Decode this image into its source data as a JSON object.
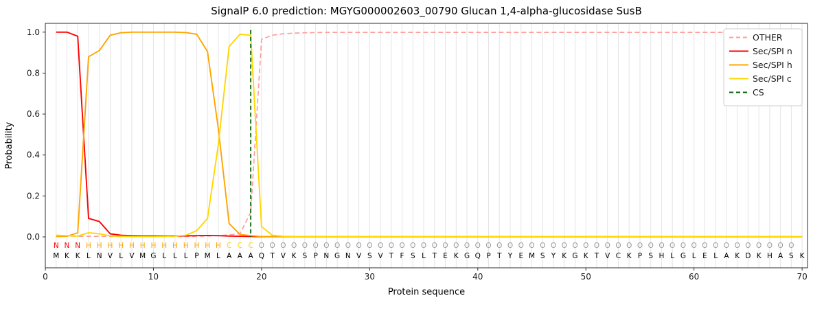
{
  "title": "SignalP 6.0 prediction: MGYG000002603_00790 Glucan 1,4-alpha-glucosidase SusB",
  "axes": {
    "xlabel": "Protein sequence",
    "ylabel": "Probability",
    "xticks": [
      0,
      10,
      20,
      30,
      40,
      50,
      60,
      70
    ],
    "yticks": [
      "0.0",
      "0.2",
      "0.4",
      "0.6",
      "0.8",
      "1.0"
    ]
  },
  "legend": {
    "entries": [
      {
        "label": "OTHER",
        "color": "#ff9e9e",
        "dash": true
      },
      {
        "label": "Sec/SPI n",
        "color": "#ff0000",
        "dash": false
      },
      {
        "label": "Sec/SPI h",
        "color": "#ffa500",
        "dash": false
      },
      {
        "label": "Sec/SPI c",
        "color": "#ffd700",
        "dash": false
      },
      {
        "label": "CS",
        "color": "#006400",
        "dash": true
      }
    ]
  },
  "sequence": "MKKLNVLVMGLLLPMLAAAQTVKSPNGNVSVTFSLTEKGQPTYEMSYKGKTVCKPSHLGLELAKDKHASK",
  "region_labels": "NNNHHHHHHHHHHHHHCCCOOOOOOOOOOOOOOOOOOOOOOOOOOOOOOOOOOOOOOOOOOOOOOOOOO",
  "region_colors": {
    "N": "#ff0000",
    "H": "#ffa500",
    "C": "#ffd700",
    "O": "#999999"
  },
  "grid_color": "#e4e4e4",
  "chart_data": {
    "type": "line",
    "title": "SignalP 6.0 prediction: MGYG000002603_00790 Glucan 1,4-alpha-glucosidase SusB",
    "xlabel": "Protein sequence",
    "ylabel": "Probability",
    "x_start": 1,
    "xlim": [
      0,
      70.5
    ],
    "ylim": [
      -0.151,
      1.043
    ],
    "grid": "vertical-per-residue",
    "legend_position": "upper right",
    "cs_x": 19,
    "series": [
      {
        "name": "OTHER",
        "color": "#ff9e9e",
        "dash": true,
        "values": [
          0.005,
          0.004,
          0.003,
          0.003,
          0.003,
          0.002,
          0.002,
          0.002,
          0.002,
          0.002,
          0.002,
          0.002,
          0.002,
          0.003,
          0.004,
          0.006,
          0.01,
          0.015,
          0.12,
          0.965,
          0.985,
          0.992,
          0.995,
          0.997,
          0.998,
          0.999,
          0.999,
          0.999,
          0.999,
          0.999,
          0.999,
          0.999,
          0.999,
          0.999,
          0.999,
          0.999,
          0.999,
          0.999,
          0.999,
          0.999,
          0.999,
          0.999,
          0.999,
          0.999,
          0.999,
          0.999,
          0.999,
          0.999,
          0.999,
          0.999,
          0.999,
          0.999,
          0.999,
          0.999,
          0.999,
          0.999,
          0.999,
          0.999,
          0.999,
          0.999,
          0.999,
          0.999,
          0.999,
          0.999,
          0.999,
          0.999,
          0.999,
          0.999,
          0.999,
          0.999
        ]
      },
      {
        "name": "Sec/SPI n",
        "color": "#ff0000",
        "dash": false,
        "values": [
          1.0,
          1.0,
          0.98,
          0.09,
          0.075,
          0.015,
          0.008,
          0.006,
          0.005,
          0.005,
          0.005,
          0.005,
          0.005,
          0.006,
          0.007,
          0.006,
          0.004,
          0.003,
          0.002,
          0.001,
          0.001,
          0.001,
          0.001,
          0.001,
          0.001,
          0.001,
          0.001,
          0.001,
          0.001,
          0.001,
          0.001,
          0.001,
          0.001,
          0.001,
          0.001,
          0.001,
          0.001,
          0.001,
          0.001,
          0.001,
          0.001,
          0.001,
          0.001,
          0.001,
          0.001,
          0.001,
          0.001,
          0.001,
          0.001,
          0.001,
          0.001,
          0.001,
          0.001,
          0.001,
          0.001,
          0.001,
          0.001,
          0.001,
          0.001,
          0.001,
          0.001,
          0.001,
          0.001,
          0.001,
          0.001,
          0.001,
          0.001,
          0.001,
          0.001,
          0.001
        ]
      },
      {
        "name": "Sec/SPI h",
        "color": "#ffa500",
        "dash": false,
        "values": [
          0.002,
          0.003,
          0.02,
          0.88,
          0.91,
          0.985,
          0.997,
          1.0,
          1.0,
          1.0,
          1.0,
          1.0,
          0.998,
          0.99,
          0.905,
          0.53,
          0.065,
          0.012,
          0.006,
          0.002,
          0.001,
          0.001,
          0.001,
          0.001,
          0.001,
          0.001,
          0.001,
          0.001,
          0.001,
          0.001,
          0.001,
          0.001,
          0.001,
          0.001,
          0.001,
          0.001,
          0.001,
          0.001,
          0.001,
          0.001,
          0.001,
          0.001,
          0.001,
          0.001,
          0.001,
          0.001,
          0.001,
          0.001,
          0.001,
          0.001,
          0.001,
          0.001,
          0.001,
          0.001,
          0.001,
          0.001,
          0.001,
          0.001,
          0.001,
          0.001,
          0.001,
          0.001,
          0.001,
          0.001,
          0.001,
          0.001,
          0.001,
          0.001,
          0.001,
          0.001
        ]
      },
      {
        "name": "Sec/SPI c",
        "color": "#ffd700",
        "dash": false,
        "values": [
          0.008,
          0.006,
          0.004,
          0.02,
          0.015,
          0.005,
          0.003,
          0.002,
          0.002,
          0.002,
          0.003,
          0.004,
          0.008,
          0.03,
          0.09,
          0.45,
          0.93,
          0.99,
          0.985,
          0.05,
          0.008,
          0.003,
          0.002,
          0.002,
          0.002,
          0.002,
          0.002,
          0.002,
          0.002,
          0.002,
          0.002,
          0.002,
          0.002,
          0.002,
          0.002,
          0.002,
          0.002,
          0.002,
          0.002,
          0.002,
          0.002,
          0.002,
          0.002,
          0.002,
          0.002,
          0.002,
          0.002,
          0.002,
          0.002,
          0.002,
          0.002,
          0.002,
          0.002,
          0.002,
          0.002,
          0.002,
          0.002,
          0.002,
          0.002,
          0.002,
          0.002,
          0.002,
          0.002,
          0.002,
          0.002,
          0.002,
          0.002,
          0.002,
          0.002,
          0.002
        ]
      }
    ]
  }
}
